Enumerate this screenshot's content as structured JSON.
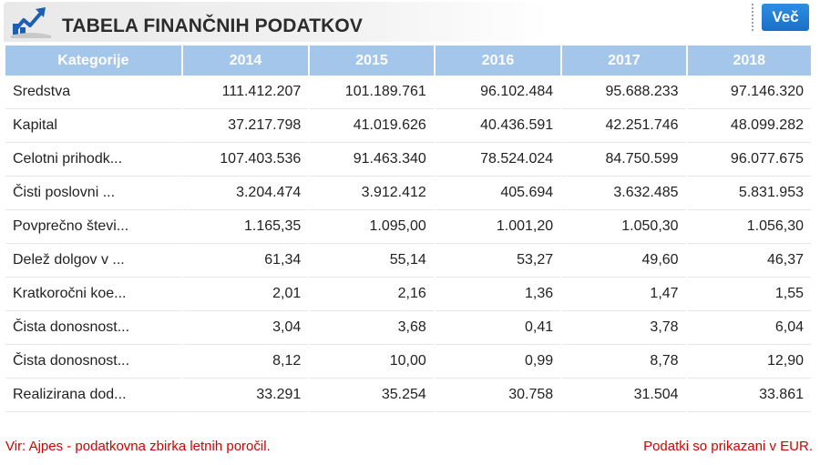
{
  "header": {
    "title": "TABELA FINANČNIH PODATKOV",
    "logo_icon": "chart-trend-icon",
    "more_label": "Več"
  },
  "table": {
    "columns": [
      "Kategorije",
      "2014",
      "2015",
      "2016",
      "2017",
      "2018"
    ],
    "rows": [
      {
        "cat": "Sredstva",
        "v": [
          "111.412.207",
          "101.189.761",
          "96.102.484",
          "95.688.233",
          "97.146.320"
        ]
      },
      {
        "cat": "Kapital",
        "v": [
          "37.217.798",
          "41.019.626",
          "40.436.591",
          "42.251.746",
          "48.099.282"
        ]
      },
      {
        "cat": "Celotni prihodk...",
        "v": [
          "107.403.536",
          "91.463.340",
          "78.524.024",
          "84.750.599",
          "96.077.675"
        ]
      },
      {
        "cat": "Čisti poslovni ...",
        "v": [
          "3.204.474",
          "3.912.412",
          "405.694",
          "3.632.485",
          "5.831.953"
        ]
      },
      {
        "cat": "Povprečno števi...",
        "v": [
          "1.165,35",
          "1.095,00",
          "1.001,20",
          "1.050,30",
          "1.056,30"
        ]
      },
      {
        "cat": "Delež dolgov v ...",
        "v": [
          "61,34",
          "55,14",
          "53,27",
          "49,60",
          "46,37"
        ]
      },
      {
        "cat": "Kratkoročni koe...",
        "v": [
          "2,01",
          "2,16",
          "1,36",
          "1,47",
          "1,55"
        ]
      },
      {
        "cat": "Čista donosnost...",
        "v": [
          "3,04",
          "3,68",
          "0,41",
          "3,78",
          "6,04"
        ]
      },
      {
        "cat": "Čista donosnost...",
        "v": [
          "8,12",
          "10,00",
          "0,99",
          "8,78",
          "12,90"
        ]
      },
      {
        "cat": "Realizirana dod...",
        "v": [
          "33.291",
          "35.254",
          "30.758",
          "31.504",
          "33.861"
        ]
      }
    ]
  },
  "footer": {
    "source": "Vir: Ajpes - podatkovna zbirka letnih poročil.",
    "note": "Podatki so prikazani v EUR."
  },
  "colors": {
    "header_bg": "#a3c6ea",
    "button_bg": "#1a6fc6",
    "footer_text": "#d40000"
  }
}
